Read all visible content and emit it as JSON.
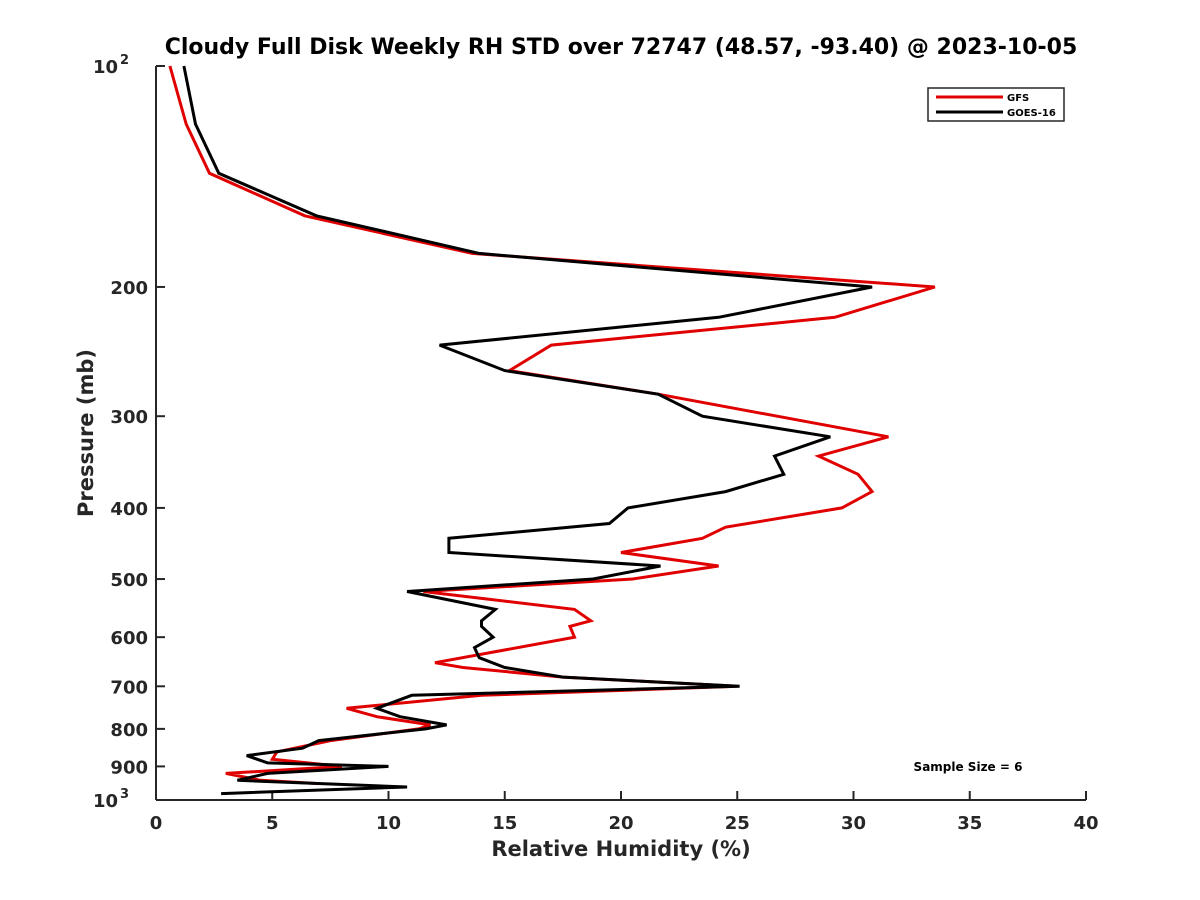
{
  "chart_data": {
    "type": "line",
    "title": "Cloudy Full Disk Weekly RH STD over 72747 (48.57, -93.40) @ 2023-10-05",
    "xlabel": "Relative Humidity (%)",
    "ylabel": "Pressure (mb)",
    "xlim": [
      0,
      40
    ],
    "ylim": [
      100,
      1000
    ],
    "yscale": "log",
    "y_reversed": true,
    "x_ticks": [
      0,
      5,
      10,
      15,
      20,
      25,
      30,
      35,
      40
    ],
    "y_ticks": [
      {
        "value": 100,
        "label": "10",
        "sup": "2"
      },
      {
        "value": 200,
        "label": "200",
        "sup": ""
      },
      {
        "value": 300,
        "label": "300",
        "sup": ""
      },
      {
        "value": 400,
        "label": "400",
        "sup": ""
      },
      {
        "value": 500,
        "label": "500",
        "sup": ""
      },
      {
        "value": 600,
        "label": "600",
        "sup": ""
      },
      {
        "value": 700,
        "label": "700",
        "sup": ""
      },
      {
        "value": 800,
        "label": "800",
        "sup": ""
      },
      {
        "value": 900,
        "label": "900",
        "sup": ""
      },
      {
        "value": 1000,
        "label": "10",
        "sup": "3"
      }
    ],
    "grid": false,
    "legend_position": "top-right",
    "annotation": "Sample Size = 6",
    "series": [
      {
        "name": "GFS",
        "color": "#e00000",
        "points": [
          [
            0.6,
            100
          ],
          [
            1.3,
            120
          ],
          [
            2.3,
            140
          ],
          [
            6.4,
            160
          ],
          [
            13.6,
            180
          ],
          [
            33.5,
            200
          ],
          [
            29.2,
            220
          ],
          [
            17.0,
            240
          ],
          [
            15.2,
            260
          ],
          [
            21.6,
            280
          ],
          [
            31.5,
            320
          ],
          [
            28.5,
            340
          ],
          [
            30.2,
            360
          ],
          [
            30.8,
            380
          ],
          [
            29.5,
            400
          ],
          [
            24.5,
            425
          ],
          [
            23.5,
            440
          ],
          [
            20.0,
            460
          ],
          [
            24.2,
            480
          ],
          [
            20.5,
            500
          ],
          [
            11.5,
            520
          ],
          [
            18.0,
            550
          ],
          [
            18.7,
            570
          ],
          [
            17.8,
            580
          ],
          [
            18.0,
            600
          ],
          [
            12.0,
            650
          ],
          [
            13.2,
            660
          ],
          [
            17.5,
            680
          ],
          [
            25.0,
            700
          ],
          [
            14.0,
            720
          ],
          [
            8.2,
            750
          ],
          [
            9.5,
            770
          ],
          [
            11.8,
            790
          ],
          [
            11.3,
            800
          ],
          [
            7.5,
            830
          ],
          [
            5.2,
            860
          ],
          [
            5.0,
            880
          ],
          [
            8.0,
            900
          ],
          [
            3.0,
            920
          ],
          [
            4.5,
            940
          ],
          [
            7.0,
            950
          ]
        ]
      },
      {
        "name": "GOES-16",
        "color": "#000000",
        "points": [
          [
            1.2,
            100
          ],
          [
            1.7,
            120
          ],
          [
            2.7,
            140
          ],
          [
            6.9,
            160
          ],
          [
            13.9,
            180
          ],
          [
            30.8,
            200
          ],
          [
            24.2,
            220
          ],
          [
            12.2,
            240
          ],
          [
            15.0,
            260
          ],
          [
            21.6,
            280
          ],
          [
            23.5,
            300
          ],
          [
            29.0,
            320
          ],
          [
            26.6,
            340
          ],
          [
            27.0,
            360
          ],
          [
            24.5,
            380
          ],
          [
            20.3,
            400
          ],
          [
            19.5,
            420
          ],
          [
            12.6,
            440
          ],
          [
            12.6,
            460
          ],
          [
            21.7,
            480
          ],
          [
            18.8,
            500
          ],
          [
            10.8,
            520
          ],
          [
            14.6,
            550
          ],
          [
            14.0,
            570
          ],
          [
            14.0,
            580
          ],
          [
            14.5,
            600
          ],
          [
            13.7,
            620
          ],
          [
            13.9,
            640
          ],
          [
            15.0,
            660
          ],
          [
            17.5,
            680
          ],
          [
            25.1,
            700
          ],
          [
            11.0,
            720
          ],
          [
            9.5,
            750
          ],
          [
            10.5,
            770
          ],
          [
            12.5,
            790
          ],
          [
            11.6,
            800
          ],
          [
            7.0,
            830
          ],
          [
            6.3,
            850
          ],
          [
            3.9,
            870
          ],
          [
            4.8,
            890
          ],
          [
            10.0,
            900
          ],
          [
            4.8,
            920
          ],
          [
            3.5,
            940
          ],
          [
            10.8,
            960
          ],
          [
            2.8,
            980
          ]
        ]
      }
    ]
  }
}
